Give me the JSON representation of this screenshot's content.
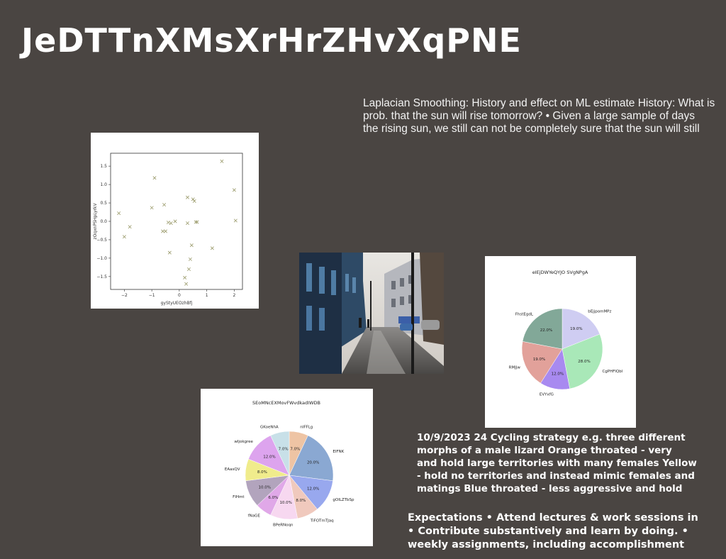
{
  "slide": {
    "title": "JeDTTnXMsXrHrZHvXqPNE",
    "paragraph_lines": [
      "Laplacian Smoothing: History and effect on ML estimate History: What is",
      "prob. that the sun will rise tomorrow? • Given a large sample of days",
      "the rising sun, we still can not be completely sure that the sun will still"
    ],
    "bold_lines": [
      "10/9/2023 24 Cycling strategy e.g. three different",
      "morphs of a male lizard Orange throated - very",
      "and hold large territories with many females Yellow",
      "- hold no territories and instead mimic females and",
      "matings Blue throated - less aggressive and hold"
    ],
    "expect_lines": [
      "Expectations • Attend lectures & work sessions in",
      "• Contribute substantively and learn by doing. •",
      "weekly assignments, including accomplishment"
    ]
  },
  "chart_data": [
    {
      "type": "scatter",
      "xlabel": "gyStyUEOzhBfj",
      "ylabel": "zOqxnPSHpLyrkV",
      "xlim": [
        -2.5,
        2.3
      ],
      "ylim": [
        -1.85,
        1.85
      ],
      "xticks": [
        -2,
        -1,
        0,
        1,
        2
      ],
      "yticks": [
        -1.5,
        -1.0,
        -0.5,
        0.0,
        0.5,
        1.0,
        1.5
      ],
      "tick_labels_x": [
        "−2",
        "−1",
        "0",
        "1",
        "2"
      ],
      "tick_labels_y": [
        "−1.5",
        "−1.0",
        "−0.5",
        "0.0",
        "0.5",
        "1.0",
        "1.5"
      ],
      "marker": "x",
      "color": "#9a9a6a",
      "x": [
        -2.2,
        -2.0,
        -1.8,
        -1.0,
        -0.9,
        -0.6,
        -0.55,
        -0.5,
        -0.4,
        -0.35,
        -0.3,
        -0.15,
        0.2,
        0.25,
        0.3,
        0.3,
        0.35,
        0.4,
        0.45,
        0.5,
        0.55,
        0.6,
        0.65,
        1.2,
        1.55,
        2.0,
        2.05
      ],
      "y": [
        0.22,
        -0.42,
        -0.15,
        0.37,
        1.18,
        -0.27,
        0.45,
        -0.27,
        -0.03,
        -0.85,
        -0.05,
        0.0,
        -1.53,
        -1.7,
        -0.05,
        0.65,
        -1.3,
        -1.03,
        -0.65,
        0.6,
        0.55,
        -0.02,
        -0.02,
        -0.73,
        1.63,
        0.85,
        0.02
      ]
    },
    {
      "type": "pie",
      "title": "eIEjDWYeQYJO SVgNPgA",
      "categories": [
        "bEjjpomMPz",
        "CgPHFlQbl",
        "EVYxfG",
        "RMJjw",
        "FhstEgdL"
      ],
      "values": [
        19.0,
        28.0,
        12.0,
        19.0,
        22.0
      ],
      "labels": [
        "19.0%",
        "28.0%",
        "12.0%",
        "19.0%",
        "22.0%"
      ],
      "colors": [
        "#cfcdf2",
        "#a9e8b8",
        "#a88af0",
        "#e2a19a",
        "#82a898"
      ]
    },
    {
      "type": "pie",
      "title": "SEoMNcEXMovFWvdkadIWDB",
      "categories": [
        "nIFFLg",
        "ElFNK",
        "gOILZTbSp",
        "TiFOTmTJaq",
        "BPeRNoqn",
        "fNaGE",
        "FIHmt",
        "EAasQV",
        "wIjokgree",
        "GKoeNhA"
      ],
      "values": [
        7.0,
        20.0,
        12.0,
        8.0,
        10.0,
        6.0,
        10.0,
        8.0,
        12.0,
        7.0
      ],
      "labels": [
        "7.0%",
        "20.0%",
        "12.0%",
        "8.0%",
        "10.0%",
        "6.0%",
        "10.0%",
        "8.0%",
        "12.0%",
        "7.0%"
      ],
      "colors": [
        "#eec4a4",
        "#8aa8d2",
        "#98a8ee",
        "#f0c9bd",
        "#f7d8f0",
        "#e0a8e8",
        "#b2a4bd",
        "#f0ec8c",
        "#dda4ee",
        "#c8e0e8"
      ]
    }
  ],
  "photo": {
    "alt": "city-street-photo"
  }
}
